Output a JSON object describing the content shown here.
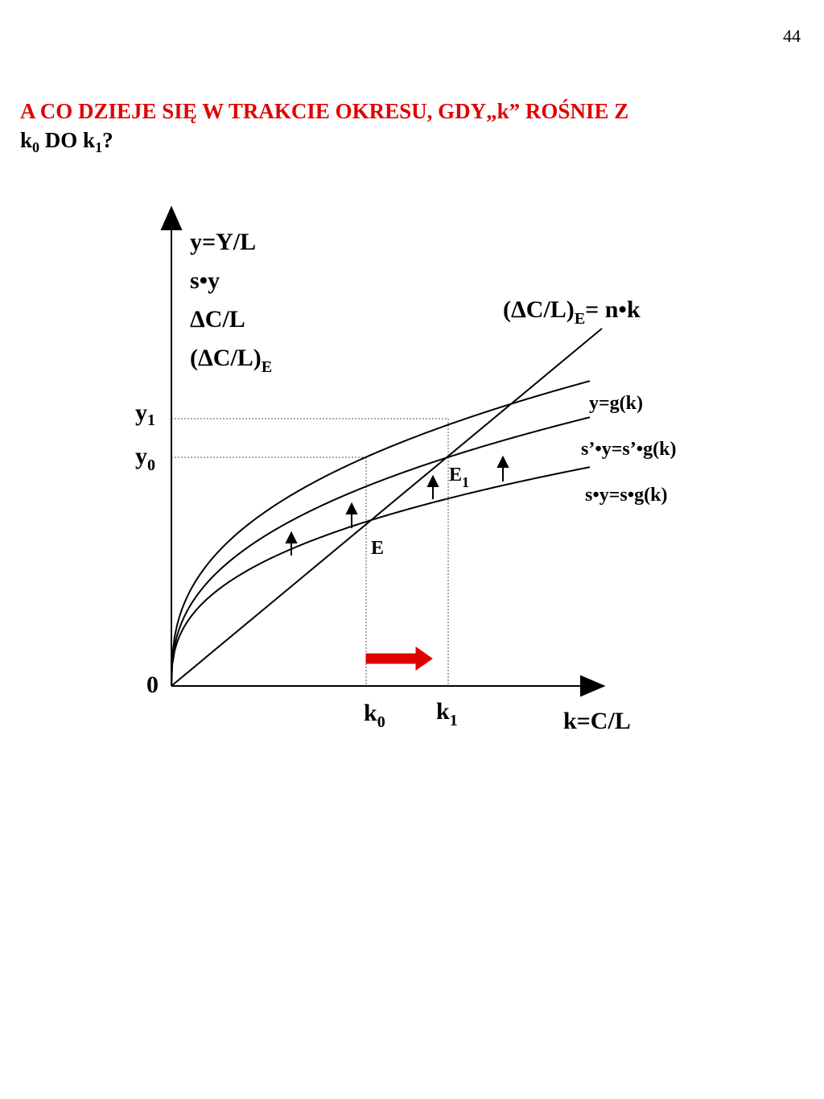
{
  "page_number": "44",
  "title": {
    "line1": "A CO DZIEJE SIĘ W TRAKCIE OKRESU, GDY„k” ROŚNIE Z",
    "line2": [
      "k",
      "0",
      " DO k",
      "1",
      "?"
    ]
  },
  "y_axis_labels": {
    "lines": [
      "y=Y/L",
      "s•y",
      "ΔC/L"
    ],
    "last": [
      "(ΔC/L)",
      "E"
    ]
  },
  "line_label": [
    "(ΔC/L)",
    "E",
    "= n•k"
  ],
  "curve_labels": [
    "y=g(k)",
    "s’•y=s’•g(k)",
    "s•y=s•g(k)"
  ],
  "y1": [
    "y",
    "1"
  ],
  "y0": [
    "y",
    "0"
  ],
  "origin": "0",
  "point_e": "E",
  "point_e1": [
    "E",
    "1"
  ],
  "k0": [
    "k",
    "0"
  ],
  "k1": [
    "k",
    "1"
  ],
  "x_axis_label": "k=C/L"
}
